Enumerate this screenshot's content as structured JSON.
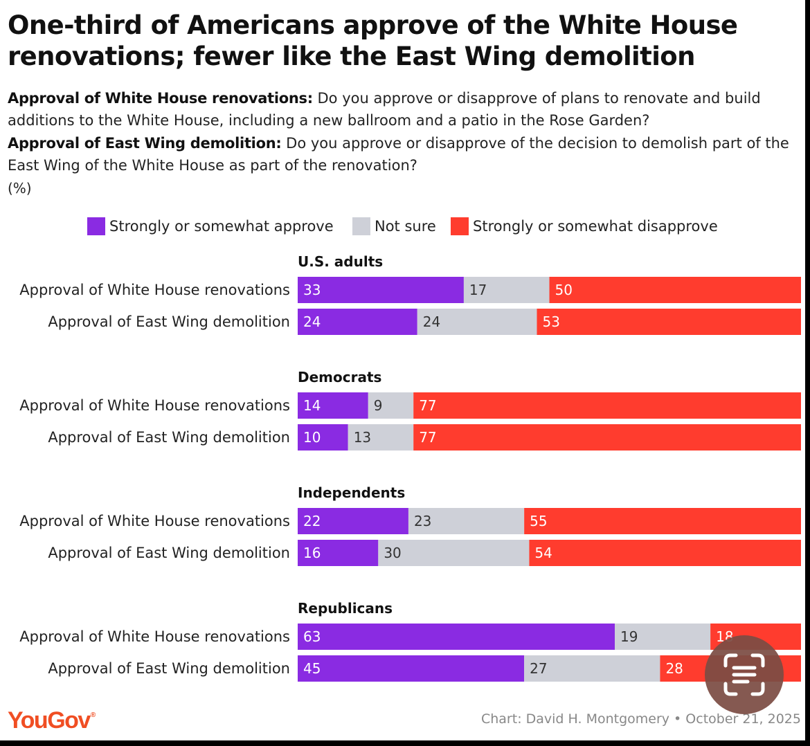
{
  "chart_data": {
    "type": "bar",
    "orientation": "horizontal",
    "stacked": true,
    "title": "One-third of Americans approve of the White House renovations; fewer like the East Wing demolition",
    "questions": [
      {
        "label": "Approval of White House renovations:",
        "text": "Do you approve or disapprove of plans to renovate and build additions to the White House, including a new ballroom and a patio in the Rose Garden?"
      },
      {
        "label": "Approval of East Wing demolition:",
        "text": "Do you approve or disapprove of the decision to demolish part of the East Wing of the White House as part of the renovation?"
      }
    ],
    "unit": "(%)",
    "legend": [
      {
        "name": "Strongly or somewhat approve",
        "color": "#8a2be2"
      },
      {
        "name": "Not sure",
        "color": "#ced0d8"
      },
      {
        "name": "Strongly or somewhat disapprove",
        "color": "#ff3c2e"
      }
    ],
    "xlim": [
      0,
      100
    ],
    "groups": [
      {
        "name": "U.S. adults",
        "rows": [
          {
            "label": "Approval of White House renovations",
            "values": [
              33,
              17,
              50
            ]
          },
          {
            "label": "Approval of East Wing demolition",
            "values": [
              24,
              24,
              53
            ]
          }
        ]
      },
      {
        "name": "Democrats",
        "rows": [
          {
            "label": "Approval of White House renovations",
            "values": [
              14,
              9,
              77
            ]
          },
          {
            "label": "Approval of East Wing demolition",
            "values": [
              10,
              13,
              77
            ]
          }
        ]
      },
      {
        "name": "Independents",
        "rows": [
          {
            "label": "Approval of White House renovations",
            "values": [
              22,
              23,
              55
            ]
          },
          {
            "label": "Approval of East Wing demolition",
            "values": [
              16,
              30,
              54
            ]
          }
        ]
      },
      {
        "name": "Republicans",
        "rows": [
          {
            "label": "Approval of White House renovations",
            "values": [
              63,
              19,
              18
            ]
          },
          {
            "label": "Approval of East Wing demolition",
            "values": [
              45,
              27,
              28
            ]
          }
        ]
      }
    ],
    "source": "Chart: David H. Montgomery • October 21, 2025",
    "brand": "YouGov"
  }
}
